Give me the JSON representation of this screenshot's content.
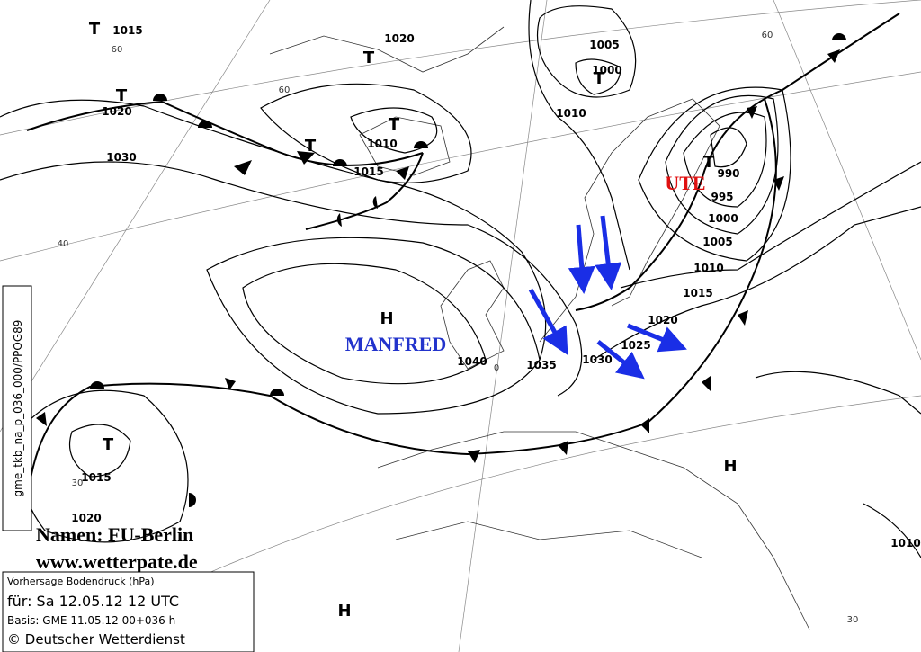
{
  "map": {
    "isobar_labels": [
      "1015",
      "1020",
      "1020",
      "1030",
      "1010",
      "1015",
      "1005",
      "1000",
      "1010",
      "990",
      "995",
      "1000",
      "1005",
      "1010",
      "1015",
      "1020",
      "1025",
      "1030",
      "1035",
      "1040",
      "1015",
      "1020",
      "1010"
    ],
    "centers": [
      "T",
      "T",
      "T",
      "T",
      "T",
      "T",
      "T",
      "T",
      "H",
      "H",
      "H"
    ],
    "names": [
      "MANFRED",
      "UTE"
    ],
    "grid_labels": [
      "60",
      "60",
      "60",
      "40",
      "0",
      "30",
      "30"
    ],
    "side_label": "gme_tkb_na_p_036_000/PPOG89",
    "credits": [
      "Namen: FU-Berlin",
      "www.wetterpate.de"
    ],
    "info": [
      "Vorhersage Bodendruck (hPa)",
      "für:  Sa 12.05.12  12 UTC",
      "Basis: GME  11.05.12 00+036 h",
      "© Deutscher Wetterdienst"
    ]
  }
}
